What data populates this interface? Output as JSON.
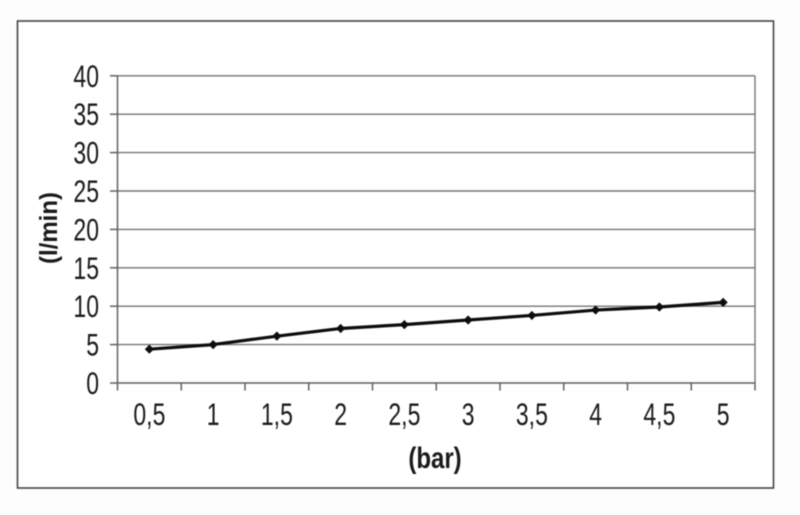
{
  "figure": {
    "background": "#fdfdfd",
    "plot_background": "#ffffff",
    "border_color": "#454545"
  },
  "chart_data": {
    "type": "line",
    "categories": [
      "0,5",
      "1",
      "1,5",
      "2",
      "2,5",
      "3",
      "3,5",
      "4",
      "4,5",
      "5"
    ],
    "values": [
      4.4,
      5.0,
      6.1,
      7.1,
      7.6,
      8.2,
      8.8,
      9.5,
      9.9,
      10.5
    ],
    "title": "",
    "xlabel": "(bar)",
    "ylabel": "(l/min)",
    "ylim": [
      0,
      40
    ],
    "ytick_step": 5,
    "ytick_labels": [
      "0",
      "5",
      "10",
      "15",
      "20",
      "25",
      "30",
      "35",
      "40"
    ],
    "grid": true,
    "legend": false,
    "marker": "diamond",
    "line_color": "#0d0d0d",
    "marker_color": "#0d0d0d",
    "gridline_color": "#757575",
    "axis_color": "#616161",
    "tick_color": "#616161",
    "text_color": "#1a1a1a"
  }
}
